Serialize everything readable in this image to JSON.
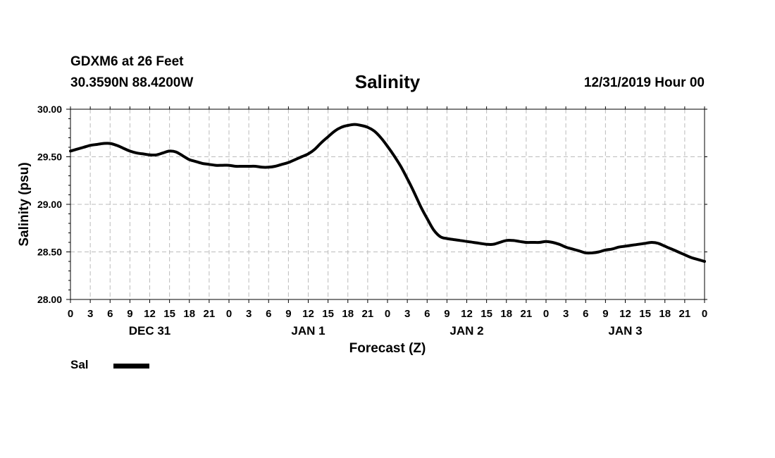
{
  "header": {
    "station": "GDXM6 at 26 Feet",
    "coords": "30.3590N 88.4200W",
    "title": "Salinity",
    "datestamp": "12/31/2019 Hour 00"
  },
  "legend": {
    "entries": [
      {
        "label": "Sal",
        "color": "#000000"
      }
    ]
  },
  "chart_data": {
    "type": "line",
    "title": "Salinity",
    "xlabel": "Forecast (Z)",
    "ylabel": "Salinity (psu)",
    "xlim": [
      0,
      96
    ],
    "ylim": [
      28.0,
      30.0
    ],
    "grid": true,
    "legend_position": "bottom-left",
    "x_ticks": [
      0,
      3,
      6,
      9,
      12,
      15,
      18,
      21,
      24,
      27,
      30,
      33,
      36,
      39,
      42,
      45,
      48,
      51,
      54,
      57,
      60,
      63,
      66,
      69,
      72,
      75,
      78,
      81,
      84,
      87,
      90,
      93,
      96
    ],
    "x_tick_labels": [
      "0",
      "3",
      "6",
      "9",
      "12",
      "15",
      "18",
      "21",
      "0",
      "3",
      "6",
      "9",
      "12",
      "15",
      "18",
      "21",
      "0",
      "3",
      "6",
      "9",
      "12",
      "15",
      "18",
      "21",
      "0",
      "3",
      "6",
      "9",
      "12",
      "15",
      "18",
      "21",
      "0"
    ],
    "y_ticks": [
      28.0,
      28.5,
      29.0,
      29.5,
      30.0
    ],
    "y_tick_labels": [
      "28.00",
      "28.50",
      "29.00",
      "29.50",
      "30.00"
    ],
    "day_labels": [
      {
        "label": "DEC 31",
        "x": 12
      },
      {
        "label": "JAN 1",
        "x": 36
      },
      {
        "label": "JAN 2",
        "x": 60
      },
      {
        "label": "JAN 3",
        "x": 84
      }
    ],
    "series": [
      {
        "name": "Sal",
        "color": "#000000",
        "x": [
          0,
          1,
          2,
          3,
          4,
          5,
          6,
          7,
          8,
          9,
          10,
          11,
          12,
          13,
          14,
          15,
          16,
          17,
          18,
          19,
          20,
          21,
          22,
          23,
          24,
          25,
          26,
          27,
          28,
          29,
          30,
          31,
          32,
          33,
          34,
          35,
          36,
          37,
          38,
          39,
          40,
          41,
          42,
          43,
          44,
          45,
          46,
          47,
          48,
          49,
          50,
          51,
          52,
          53,
          54,
          55,
          56,
          57,
          58,
          59,
          60,
          61,
          62,
          63,
          64,
          65,
          66,
          67,
          68,
          69,
          70,
          71,
          72,
          73,
          74,
          75,
          76,
          77,
          78,
          79,
          80,
          81,
          82,
          83,
          84,
          85,
          86,
          87,
          88,
          89,
          90,
          91,
          92,
          93,
          94,
          95,
          96
        ],
        "y": [
          29.56,
          29.58,
          29.6,
          29.62,
          29.63,
          29.64,
          29.64,
          29.62,
          29.59,
          29.56,
          29.54,
          29.53,
          29.52,
          29.52,
          29.54,
          29.56,
          29.55,
          29.51,
          29.47,
          29.45,
          29.43,
          29.42,
          29.41,
          29.41,
          29.41,
          29.4,
          29.4,
          29.4,
          29.4,
          29.39,
          29.39,
          29.4,
          29.42,
          29.44,
          29.47,
          29.5,
          29.53,
          29.58,
          29.65,
          29.71,
          29.77,
          29.81,
          29.83,
          29.84,
          29.83,
          29.81,
          29.77,
          29.7,
          29.61,
          29.51,
          29.4,
          29.27,
          29.13,
          28.98,
          28.85,
          28.73,
          28.66,
          28.64,
          28.63,
          28.62,
          28.61,
          28.6,
          28.59,
          28.58,
          28.58,
          28.6,
          28.62,
          28.62,
          28.61,
          28.6,
          28.6,
          28.6,
          28.61,
          28.6,
          28.58,
          28.55,
          28.53,
          28.51,
          28.49,
          28.49,
          28.5,
          28.52,
          28.53,
          28.55,
          28.56,
          28.57,
          28.58,
          28.59,
          28.6,
          28.59,
          28.56,
          28.53,
          28.5,
          28.47,
          28.44,
          28.42,
          28.4
        ]
      }
    ]
  }
}
